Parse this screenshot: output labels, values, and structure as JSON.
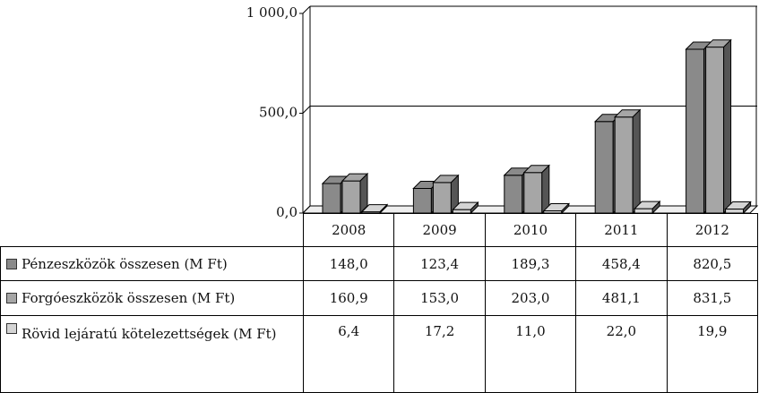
{
  "chart_data": {
    "type": "bar",
    "categories": [
      "2008",
      "2009",
      "2010",
      "2011",
      "2012"
    ],
    "series": [
      {
        "name": "Pénzeszközök összesen (M Ft)",
        "color": "#8a8a8a",
        "values": [
          148.0,
          123.4,
          189.3,
          458.4,
          820.5
        ],
        "value_labels": [
          "148,0",
          "123,4",
          "189,3",
          "458,4",
          "820,5"
        ]
      },
      {
        "name": "Forgóeszközök összesen (M Ft)",
        "color": "#a6a6a6",
        "values": [
          160.9,
          153.0,
          203.0,
          481.1,
          831.5
        ],
        "value_labels": [
          "160,9",
          "153,0",
          "203,0",
          "481,1",
          "831,5"
        ]
      },
      {
        "name": "Rövid lejáratú kötelezettségek (M Ft)",
        "color": "#d4d4d4",
        "values": [
          6.4,
          17.2,
          11.0,
          22.0,
          19.9
        ],
        "value_labels": [
          "6,4",
          "17,2",
          "11,0",
          "22,0",
          "19,9"
        ]
      }
    ],
    "ylim": [
      0,
      1000
    ],
    "yticks": [
      {
        "value": 0,
        "label": "0,0"
      },
      {
        "value": 500,
        "label": "500,0"
      },
      {
        "value": 1000,
        "label": "1 000,0"
      }
    ],
    "grid": true
  }
}
